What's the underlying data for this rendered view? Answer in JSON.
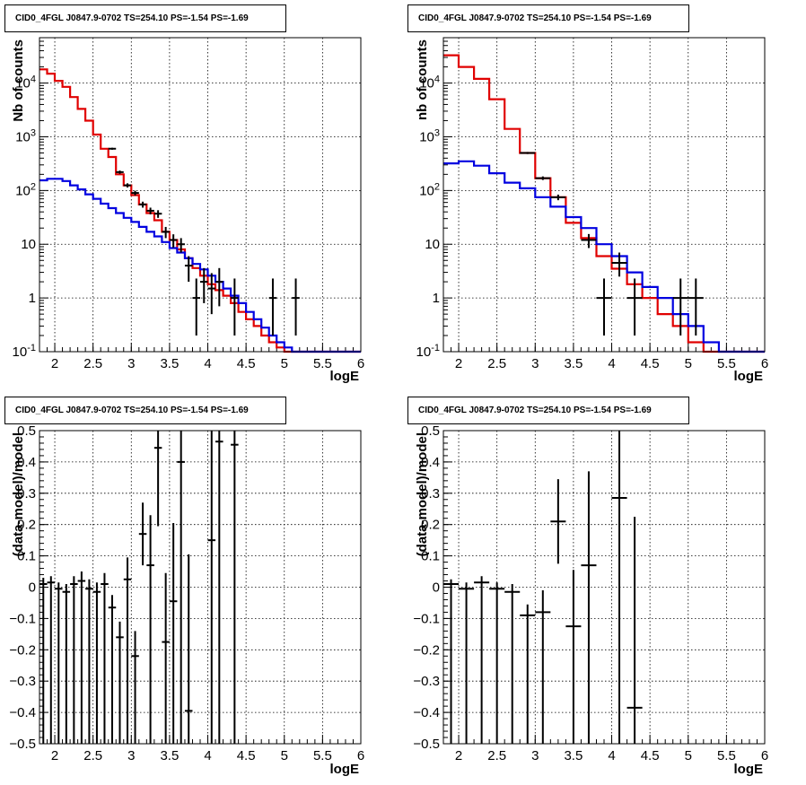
{
  "chart_data": [
    {
      "type": "step-histogram-with-errorbars",
      "title": "CID0_4FGL J0847.9-0702 TS=254.10 PS=-1.54 PS=-1.69",
      "xlabel": "logE",
      "ylabel": "Nb of counts",
      "xlim": [
        1.8,
        6
      ],
      "ylim": [
        0.1,
        70000
      ],
      "yscale": "log",
      "grid": true,
      "x_ticks": [
        "2",
        "2.5",
        "3",
        "3.5",
        "4",
        "4.5",
        "5",
        "5.5",
        "6"
      ],
      "y_ticks": [
        "10^-1",
        "1",
        "10",
        "10^2",
        "10^3",
        "10^4"
      ],
      "bin_width": 0.1,
      "series": [
        {
          "color": "#e00000",
          "style": "step",
          "x": [
            1.8,
            1.9,
            2.0,
            2.1,
            2.2,
            2.3,
            2.4,
            2.5,
            2.6,
            2.7,
            2.8,
            2.9,
            3.0,
            3.1,
            3.2,
            3.3,
            3.4,
            3.5,
            3.6,
            3.7,
            3.8,
            3.9,
            4.0,
            4.1,
            4.2,
            4.3,
            4.4,
            4.5,
            4.6,
            4.7,
            4.8,
            4.9,
            5.0,
            5.1,
            5.2,
            5.3,
            5.4,
            5.5,
            5.6,
            5.7,
            5.8,
            5.9
          ],
          "values": [
            18000,
            15000,
            11000,
            8500,
            5500,
            3300,
            2000,
            1100,
            600,
            420,
            200,
            125,
            82,
            55,
            38,
            28,
            17,
            12,
            8,
            5.5,
            3.6,
            2.6,
            1.8,
            1.4,
            1.1,
            0.8,
            0.55,
            0.4,
            0.3,
            0.2,
            0.15,
            0.12,
            0.1,
            0.1,
            0.1,
            0.1,
            0.1,
            0.1,
            0.1,
            0.1,
            0.1,
            0.1
          ]
        },
        {
          "color": "#0000e0",
          "style": "step",
          "x": [
            1.8,
            1.9,
            2.0,
            2.1,
            2.2,
            2.3,
            2.4,
            2.5,
            2.6,
            2.7,
            2.8,
            2.9,
            3.0,
            3.1,
            3.2,
            3.3,
            3.4,
            3.5,
            3.6,
            3.7,
            3.8,
            3.9,
            4.0,
            4.1,
            4.2,
            4.3,
            4.4,
            4.5,
            4.6,
            4.7,
            4.8,
            4.9,
            5.0,
            5.1,
            5.2,
            5.3,
            5.4,
            5.5,
            5.6,
            5.7,
            5.8,
            5.9
          ],
          "values": [
            155,
            165,
            165,
            150,
            125,
            105,
            85,
            70,
            57,
            47,
            38,
            31,
            26,
            21,
            17,
            14,
            11,
            8.5,
            7,
            5.5,
            4.3,
            3.4,
            2.6,
            2,
            1.5,
            1.1,
            0.8,
            0.55,
            0.4,
            0.28,
            0.2,
            0.15,
            0.12,
            0.1,
            0.1,
            0.1,
            0.1,
            0.1,
            0.1,
            0.1,
            0.1,
            0.1
          ]
        },
        {
          "color": "#000000",
          "style": "errorbar",
          "x": [
            2.75,
            2.85,
            2.95,
            3.05,
            3.15,
            3.25,
            3.35,
            3.45,
            3.55,
            3.65,
            3.75,
            3.85,
            3.95,
            4.05,
            4.15,
            4.35,
            4.85,
            5.15
          ],
          "values": [
            600,
            220,
            125,
            90,
            55,
            42,
            37,
            17,
            12,
            10,
            4,
            1,
            2,
            1.5,
            2,
            1,
            1,
            1
          ],
          "err_low": [
            25,
            15,
            11,
            9,
            7,
            6,
            6,
            4,
            3.3,
            3,
            2,
            0.8,
            1.2,
            1,
            1.3,
            0.8,
            0.8,
            0.8
          ],
          "err_high": [
            25,
            15,
            11,
            9,
            7,
            6,
            6,
            4,
            3.3,
            3,
            2,
            1.3,
            1.6,
            1.4,
            1.6,
            1.3,
            1.3,
            1.3
          ]
        }
      ]
    },
    {
      "type": "step-histogram-with-errorbars",
      "title": "CID0_4FGL J0847.9-0702 TS=254.10 PS=-1.54 PS=-1.69",
      "xlabel": "logE",
      "ylabel": "nb of counts",
      "xlim": [
        1.8,
        6
      ],
      "ylim": [
        0.1,
        70000
      ],
      "yscale": "log",
      "grid": true,
      "x_ticks": [
        "2",
        "2.5",
        "3",
        "3.5",
        "4",
        "4.5",
        "5",
        "5.5",
        "6"
      ],
      "y_ticks": [
        "10^-1",
        "1",
        "10",
        "10^2",
        "10^3",
        "10^4"
      ],
      "bin_width": 0.2,
      "series": [
        {
          "color": "#e00000",
          "style": "step",
          "x": [
            1.8,
            2.0,
            2.2,
            2.4,
            2.6,
            2.8,
            3.0,
            3.2,
            3.4,
            3.6,
            3.8,
            4.0,
            4.2,
            4.4,
            4.6,
            4.8,
            5.0,
            5.2,
            5.4,
            5.6,
            5.8
          ],
          "values": [
            33000,
            20000,
            12000,
            5000,
            1400,
            500,
            170,
            75,
            25,
            13,
            6,
            3.5,
            1.8,
            1,
            0.5,
            0.3,
            0.15,
            0.1,
            0.1,
            0.1,
            0.1
          ]
        },
        {
          "color": "#0000e0",
          "style": "step",
          "x": [
            1.8,
            2.0,
            2.2,
            2.4,
            2.6,
            2.8,
            3.0,
            3.2,
            3.4,
            3.6,
            3.8,
            4.0,
            4.2,
            4.4,
            4.6,
            4.8,
            5.0,
            5.2,
            5.4,
            5.6,
            5.8
          ],
          "values": [
            320,
            350,
            290,
            210,
            140,
            110,
            75,
            50,
            32,
            20,
            10,
            6,
            3,
            1.6,
            1,
            0.5,
            0.3,
            0.15,
            0.1,
            0.1,
            0.1
          ]
        },
        {
          "color": "#000000",
          "style": "errorbar",
          "x": [
            2.9,
            3.1,
            3.3,
            3.7,
            3.9,
            4.1,
            4.3,
            4.9,
            5.1
          ],
          "values": [
            500,
            170,
            75,
            12,
            1,
            4.5,
            1,
            1,
            1
          ],
          "err_low": [
            22,
            13,
            9,
            3.5,
            0.8,
            2,
            0.8,
            0.8,
            0.8
          ],
          "err_high": [
            22,
            13,
            9,
            3.5,
            1.3,
            2.5,
            1.3,
            1.3,
            1.3
          ]
        }
      ]
    },
    {
      "type": "errorbar",
      "title": "CID0_4FGL J0847.9-0702 TS=254.10 PS=-1.54 PS=-1.69",
      "xlabel": "logE",
      "ylabel": "(data-model)/model",
      "xlim": [
        1.8,
        6
      ],
      "ylim": [
        -0.5,
        0.5
      ],
      "grid": true,
      "x_ticks": [
        "2",
        "2.5",
        "3",
        "3.5",
        "4",
        "4.5",
        "5",
        "5.5",
        "6"
      ],
      "y_ticks": [
        "-0.5",
        "-0.4",
        "-0.3",
        "-0.2",
        "-0.1",
        "0",
        "0.1",
        "0.2",
        "0.3",
        "0.4",
        "0.5"
      ],
      "bin_width": 0.1,
      "series": [
        {
          "color": "#000000",
          "x": [
            1.85,
            1.95,
            2.05,
            2.15,
            2.25,
            2.35,
            2.45,
            2.55,
            2.65,
            2.75,
            2.85,
            2.95,
            3.05,
            3.15,
            3.25,
            3.35,
            3.45,
            3.55,
            3.65,
            3.75,
            4.05,
            4.15,
            4.35
          ],
          "values": [
            0.01,
            0.015,
            -0.005,
            -0.015,
            0.01,
            0.02,
            -0.005,
            -0.015,
            0.01,
            -0.065,
            -0.16,
            0.025,
            -0.22,
            0.17,
            0.07,
            0.445,
            -0.175,
            -0.045,
            0.4,
            -0.395,
            0.15,
            0.465,
            0.455
          ],
          "err": [
            0.02,
            0.02,
            0.02,
            0.025,
            0.025,
            0.03,
            0.03,
            0.03,
            0.035,
            0.04,
            0.05,
            0.07,
            0.08,
            0.1,
            0.16,
            0.25,
            0.22,
            0.25,
            0.44,
            0.5,
            0.5,
            0.5,
            0.5
          ]
        }
      ]
    },
    {
      "type": "errorbar",
      "title": "CID0_4FGL J0847.9-0702 TS=254.10 PS=-1.54 PS=-1.69",
      "xlabel": "logE",
      "ylabel": "(data-model)/model",
      "xlim": [
        1.8,
        6
      ],
      "ylim": [
        -0.5,
        0.5
      ],
      "grid": true,
      "x_ticks": [
        "2",
        "2.5",
        "3",
        "3.5",
        "4",
        "4.5",
        "5",
        "5.5",
        "6"
      ],
      "y_ticks": [
        "-0.5",
        "-0.4",
        "-0.3",
        "-0.2",
        "-0.1",
        "0",
        "0.1",
        "0.2",
        "0.3",
        "0.4",
        "0.5"
      ],
      "bin_width": 0.2,
      "series": [
        {
          "color": "#000000",
          "x": [
            1.9,
            2.1,
            2.3,
            2.5,
            2.7,
            2.9,
            3.1,
            3.3,
            3.5,
            3.7,
            4.1,
            4.3
          ],
          "values": [
            0.01,
            -0.005,
            0.015,
            -0.005,
            -0.015,
            -0.09,
            -0.08,
            0.21,
            -0.125,
            0.07,
            0.285,
            -0.385
          ],
          "err": [
            0.015,
            0.02,
            0.02,
            0.02,
            0.025,
            0.035,
            0.07,
            0.135,
            0.18,
            0.3,
            0.64,
            0.61
          ]
        }
      ]
    }
  ]
}
